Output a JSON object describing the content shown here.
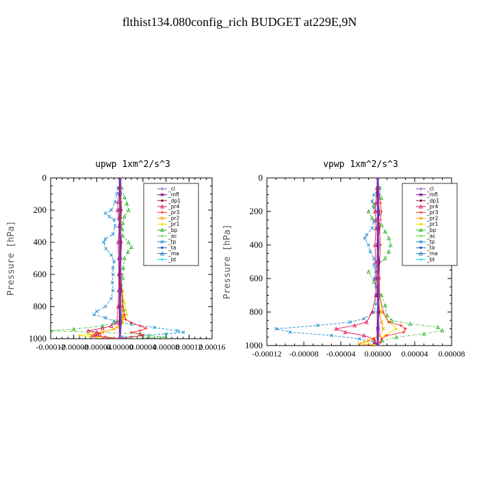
{
  "chart_data": {
    "type": "line",
    "title": "flthist134.080config_rich  BUDGET at229E,9N",
    "legend_placement": "top-right",
    "legend": [
      {
        "name": "_cl",
        "color": "#8040c0"
      },
      {
        "name": "_mfl",
        "color": "#700080"
      },
      {
        "name": "_dp1",
        "color": "#8b1a3a"
      },
      {
        "name": "_pr4",
        "color": "#e01050"
      },
      {
        "name": "_pr3",
        "color": "#ff2020"
      },
      {
        "name": "_pr2",
        "color": "#ff9900"
      },
      {
        "name": "_pr1",
        "color": "#e8e000"
      },
      {
        "name": "_bp",
        "color": "#20b020"
      },
      {
        "name": "_ac",
        "color": "#50e030"
      },
      {
        "name": "_tp",
        "color": "#2090d0"
      },
      {
        "name": "_ta",
        "color": "#2050c0"
      },
      {
        "name": "_ma",
        "color": "#1070b0"
      },
      {
        "name": "_bt",
        "color": "#00d8e8"
      }
    ],
    "panels": [
      {
        "title": "upwp   1xm^2/s^3",
        "ylabel": "Pressure [hPa]",
        "ylim": [
          0,
          1000
        ],
        "xlim": [
          -0.00012,
          0.00016
        ],
        "yticks": [
          {
            "v": 0,
            "label": "0"
          },
          {
            "v": 200,
            "label": "200"
          },
          {
            "v": 400,
            "label": "400"
          },
          {
            "v": 600,
            "label": "600"
          },
          {
            "v": 800,
            "label": "800"
          },
          {
            "v": 1000,
            "label": "1000"
          }
        ],
        "xticks": [
          {
            "v": -0.00012,
            "label": "-0.00012"
          },
          {
            "v": -8e-05,
            "label": "-0.00008"
          },
          {
            "v": -4e-05,
            "label": "-0.00004"
          },
          {
            "v": 0.0,
            "label": "0.00000"
          },
          {
            "v": 4e-05,
            "label": "0.00004"
          },
          {
            "v": 8e-05,
            "label": "0.00008"
          },
          {
            "v": 0.00012,
            "label": "0.00012"
          },
          {
            "v": 0.00016,
            "label": "0.00016"
          }
        ],
        "series": [
          {
            "name": "_bp",
            "pressure": [
              60,
              120,
              160,
              200,
              240,
              280,
              320,
              360,
              400,
              430,
              460,
              500,
              560,
              620,
              700,
              760,
              820,
              860,
              880,
              900,
              920,
              940,
              950,
              960,
              970,
              980,
              990,
              1000
            ],
            "values": [
              3e-06,
              8e-06,
              1.2e-05,
              1.5e-05,
              8e-06,
              5e-06,
              4e-06,
              5e-06,
              1.5e-05,
              2e-05,
              1.4e-05,
              8e-06,
              6e-06,
              5e-06,
              4e-06,
              5e-06,
              6e-06,
              3e-06,
              0,
              -1e-05,
              -3e-05,
              -8e-05,
              -0.00012,
              -4e-05,
              3.5e-05,
              5e-05,
              8e-05,
              2e-05
            ]
          },
          {
            "name": "_tp",
            "pressure": [
              60,
              100,
              150,
              200,
              220,
              240,
              260,
              300,
              350,
              380,
              400,
              440,
              480,
              520,
              560,
              600,
              650,
              700,
              750,
              800,
              830,
              850,
              870,
              890,
              910,
              930,
              950,
              960,
              970,
              980,
              990,
              1000
            ],
            "values": [
              -3e-06,
              -5e-06,
              -8e-06,
              -1.5e-05,
              -2.5e-05,
              -1.8e-05,
              -1e-05,
              -8e-06,
              -1.2e-05,
              -2.5e-05,
              -2.8e-05,
              -2.4e-05,
              -1.5e-05,
              -1e-05,
              -1.2e-05,
              -1.2e-05,
              -1.3e-05,
              -1.2e-05,
              -1.5e-05,
              -2.5e-05,
              -4e-05,
              -4.5e-05,
              -2.5e-05,
              -1e-05,
              2e-05,
              6e-05,
              0.0001,
              0.00011,
              8e-05,
              4e-05,
              5e-06,
              0
            ]
          },
          {
            "name": "_pr3",
            "pressure": [
              60,
              150,
              200,
              250,
              300,
              400,
              500,
              600,
              700,
              800,
              850,
              880,
              900,
              920,
              935,
              950,
              960,
              970,
              980,
              990,
              1000
            ],
            "values": [
              1e-06,
              2e-06,
              3e-06,
              2e-06,
              1e-06,
              3e-06,
              2e-06,
              2e-06,
              3e-06,
              5e-06,
              8e-06,
              1e-05,
              2e-05,
              3.5e-05,
              4.5e-05,
              3.5e-05,
              2e-05,
              3.5e-05,
              4e-05,
              2e-05,
              0
            ]
          },
          {
            "name": "_pr4",
            "pressure": [
              60,
              150,
              200,
              250,
              300,
              400,
              500,
              600,
              700,
              800,
              900,
              920,
              935,
              950,
              960,
              970,
              980,
              990,
              1000
            ],
            "values": [
              -1e-06,
              -3e-06,
              -4e-06,
              -2e-06,
              -1e-06,
              -3e-06,
              -2e-06,
              -2e-06,
              -2e-06,
              -3e-06,
              -5e-06,
              -1.5e-05,
              -3e-05,
              -5.5e-05,
              -4e-05,
              -3.5e-05,
              -4.5e-05,
              -2.5e-05,
              0
            ]
          },
          {
            "name": "_pr1",
            "pressure": [
              60,
              200,
              400,
              600,
              700,
              780,
              820,
              850,
              870,
              880,
              900,
              930,
              960,
              970,
              980,
              990,
              1000
            ],
            "values": [
              2e-06,
              3e-06,
              2e-06,
              2e-06,
              4e-06,
              8e-06,
              1e-05,
              1.2e-05,
              8e-06,
              5e-06,
              5e-06,
              -4e-06,
              -3e-05,
              -5.5e-05,
              -7e-05,
              -4e-05,
              0
            ]
          },
          {
            "name": "_pr2",
            "pressure": [
              60,
              300,
              600,
              800,
              860,
              900,
              940,
              960,
              980,
              1000
            ],
            "values": [
              1e-06,
              1e-06,
              2e-06,
              4e-06,
              6e-06,
              3e-06,
              -1e-05,
              -3e-05,
              -5e-05,
              0
            ]
          },
          {
            "name": "_cl",
            "pressure": [
              0,
              100,
              200,
              300,
              400,
              500,
              600,
              700,
              800,
              900,
              1000
            ],
            "values": [
              1e-06,
              1e-06,
              0,
              1e-06,
              0,
              0,
              1e-06,
              0,
              1e-06,
              2e-06,
              0
            ]
          },
          {
            "name": "_mfl",
            "pressure": [
              0,
              100,
              200,
              300,
              400,
              500,
              600,
              700,
              800,
              900,
              1000
            ],
            "values": [
              0,
              1e-06,
              0,
              0,
              1e-06,
              0,
              0,
              1e-06,
              0,
              1e-06,
              0
            ]
          },
          {
            "name": "_dp1",
            "pressure": [
              0,
              100,
              200,
              300,
              400,
              500,
              600,
              700,
              800,
              900,
              1000
            ],
            "values": [
              0,
              0,
              1e-06,
              0,
              0,
              1e-06,
              0,
              0,
              0,
              0,
              0
            ]
          }
        ]
      },
      {
        "title": "vpwp   1xm^2/s^3",
        "ylabel": "Pressure [hPa]",
        "ylim": [
          0,
          1000
        ],
        "xlim": [
          -0.00012,
          8e-05
        ],
        "yticks": [
          {
            "v": 0,
            "label": "0"
          },
          {
            "v": 200,
            "label": "200"
          },
          {
            "v": 400,
            "label": "400"
          },
          {
            "v": 600,
            "label": "600"
          },
          {
            "v": 800,
            "label": "800"
          },
          {
            "v": 1000,
            "label": "1000"
          }
        ],
        "xticks": [
          {
            "v": -0.00012,
            "label": "-0.00012"
          },
          {
            "v": -8e-05,
            "label": "-0.00008"
          },
          {
            "v": -4e-05,
            "label": "-0.00004"
          },
          {
            "v": 0.0,
            "label": "0.00000"
          },
          {
            "v": 4e-05,
            "label": "0.00004"
          },
          {
            "v": 8e-05,
            "label": "0.00008"
          }
        ],
        "series": [
          {
            "name": "_bp",
            "pressure": [
              60,
              120,
              160,
              200,
              240,
              280,
              320,
              360,
              400,
              440,
              480,
              520,
              560,
              620,
              700,
              760,
              820,
              850,
              870,
              890,
              910,
              930,
              950,
              970,
              990,
              1000
            ],
            "values": [
              2e-06,
              4e-06,
              -4e-06,
              -1e-05,
              -6e-06,
              4e-06,
              8e-06,
              1.2e-05,
              1.4e-05,
              1.2e-05,
              8e-06,
              0,
              -1e-05,
              -4e-06,
              4e-06,
              8e-06,
              1e-05,
              1.5e-05,
              3.5e-05,
              6.5e-05,
              7e-05,
              5e-05,
              2e-05,
              5e-06,
              -4e-06,
              0
            ]
          },
          {
            "name": "_tp",
            "pressure": [
              60,
              100,
              140,
              180,
              220,
              260,
              300,
              340,
              360,
              400,
              440,
              480,
              520,
              560,
              600,
              650,
              700,
              750,
              800,
              840,
              860,
              880,
              900,
              920,
              940,
              960,
              980,
              1000
            ],
            "values": [
              2e-06,
              -4e-06,
              -6e-06,
              -4e-06,
              2e-06,
              -4e-06,
              -6e-06,
              -1.2e-05,
              -1.4e-05,
              -1e-05,
              -8e-06,
              -4e-06,
              -4e-06,
              -2e-06,
              -4e-06,
              -2e-06,
              -2e-06,
              -2e-06,
              -4e-06,
              -1.5e-05,
              -3e-05,
              -6.5e-05,
              -0.00011,
              -9.5e-05,
              -5e-05,
              -2e-05,
              -4e-06,
              0
            ]
          },
          {
            "name": "_pr3",
            "pressure": [
              60,
              150,
              200,
              250,
              300,
              400,
              500,
              600,
              700,
              800,
              860,
              880,
              900,
              920,
              940,
              960,
              980,
              1000
            ],
            "values": [
              1e-06,
              3e-06,
              4e-06,
              3e-06,
              2e-06,
              3e-06,
              2e-06,
              2e-06,
              2e-06,
              6e-06,
              1.2e-05,
              2.5e-05,
              3e-05,
              2.8e-05,
              1e-05,
              4e-06,
              3e-06,
              0
            ]
          },
          {
            "name": "_pr4",
            "pressure": [
              60,
              150,
              200,
              250,
              300,
              400,
              500,
              600,
              700,
              800,
              860,
              880,
              900,
              920,
              940,
              960,
              980,
              1000
            ],
            "values": [
              -1e-06,
              -2e-06,
              -3e-06,
              -2e-06,
              -2e-06,
              -3e-06,
              -2e-06,
              -2e-06,
              -2e-06,
              -6e-06,
              -1.2e-05,
              -2.5e-05,
              -4.5e-05,
              -3.5e-05,
              -1.5e-05,
              -4e-06,
              -3e-06,
              0
            ]
          },
          {
            "name": "_pr1",
            "pressure": [
              60,
              300,
              600,
              800,
              860,
              900,
              940,
              960,
              980,
              1000
            ],
            "values": [
              1e-06,
              1e-06,
              1e-06,
              4e-06,
              1.2e-05,
              2e-05,
              8e-06,
              -4e-06,
              -1.5e-05,
              0
            ]
          },
          {
            "name": "_pr2",
            "pressure": [
              60,
              300,
              600,
              800,
              860,
              900,
              940,
              970,
              990,
              1000
            ],
            "values": [
              0,
              1e-06,
              1e-06,
              2e-06,
              4e-06,
              6e-06,
              2e-06,
              -1e-05,
              -2e-05,
              0
            ]
          },
          {
            "name": "_cl",
            "pressure": [
              0,
              100,
              200,
              300,
              400,
              500,
              600,
              700,
              800,
              900,
              1000
            ],
            "values": [
              0,
              1e-06,
              0,
              0,
              1e-06,
              0,
              0,
              1e-06,
              0,
              1e-06,
              0
            ]
          },
          {
            "name": "_mfl",
            "pressure": [
              0,
              100,
              200,
              300,
              400,
              500,
              600,
              700,
              800,
              900,
              1000
            ],
            "values": [
              0,
              0,
              1e-06,
              0,
              0,
              1e-06,
              0,
              0,
              1e-06,
              0,
              0
            ]
          },
          {
            "name": "_dp1",
            "pressure": [
              0,
              100,
              200,
              300,
              400,
              500,
              600,
              700,
              800,
              900,
              1000
            ],
            "values": [
              0,
              0,
              0,
              1e-06,
              0,
              0,
              0,
              1e-06,
              0,
              0,
              0
            ]
          }
        ]
      }
    ]
  }
}
